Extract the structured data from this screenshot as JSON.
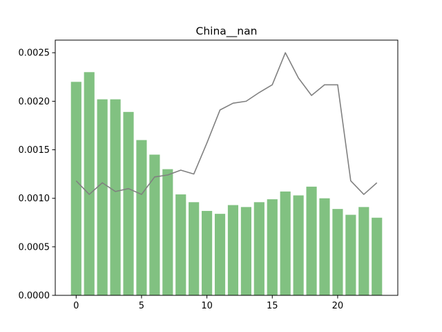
{
  "chart_data": {
    "type": "bar",
    "title": "China__nan",
    "xlabel": "",
    "ylabel": "",
    "x": [
      0,
      1,
      2,
      3,
      4,
      5,
      6,
      7,
      8,
      9,
      10,
      11,
      12,
      13,
      14,
      15,
      16,
      17,
      18,
      19,
      20,
      21,
      22,
      23
    ],
    "xlim": [
      -1.6,
      24.6
    ],
    "ylim": [
      0,
      0.00263
    ],
    "x_ticks": [
      0,
      5,
      10,
      15,
      20
    ],
    "x_tick_labels": [
      "0",
      "5",
      "10",
      "15",
      "20"
    ],
    "y_ticks": [
      0,
      0.0005,
      0.001,
      0.0015,
      0.002,
      0.0025
    ],
    "y_tick_labels": [
      "0.0000",
      "0.0005",
      "0.0010",
      "0.0015",
      "0.0020",
      "0.0025"
    ],
    "grid": false,
    "series": [
      {
        "type": "bar",
        "color": "#81c181",
        "values": [
          0.0022,
          0.0023,
          0.00202,
          0.00202,
          0.00189,
          0.0016,
          0.00145,
          0.0013,
          0.00104,
          0.00096,
          0.00087,
          0.00084,
          0.00093,
          0.00091,
          0.00096,
          0.00099,
          0.00107,
          0.00103,
          0.00112,
          0.001,
          0.00089,
          0.00083,
          0.00091,
          0.0008
        ]
      },
      {
        "type": "line",
        "color": "#808080",
        "values": [
          0.00118,
          0.00104,
          0.00116,
          0.00107,
          0.0011,
          0.00104,
          0.00122,
          0.00124,
          0.00129,
          0.00125,
          0.00157,
          0.00191,
          0.00198,
          0.002,
          0.00209,
          0.00217,
          0.0025,
          0.00224,
          0.00206,
          0.00217,
          0.00217,
          0.00118,
          0.00104,
          0.00116
        ]
      }
    ]
  }
}
